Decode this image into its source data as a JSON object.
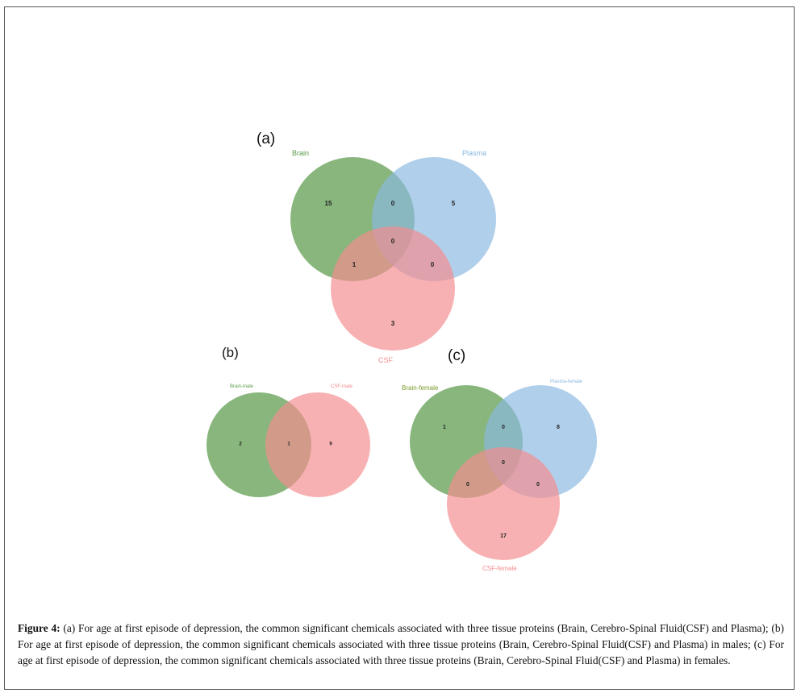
{
  "figure": {
    "caption_label": "Figure 4:",
    "caption_text": " (a) For age at first episode of depression, the common significant chemicals associated with three tissue proteins (Brain, Cerebro-Spinal Fluid(CSF) and Plasma); (b) For age at first episode of depression, the common significant chemicals associated with three tissue proteins (Brain, Cerebro-Spinal Fluid(CSF) and Plasma) in males; (c) For age at first episode of depression, the common significant chemicals associated with three tissue proteins (Brain, Cerebro-Spinal Fluid(CSF) and Plasma) in females."
  },
  "colors": {
    "green": "#5a9a4a",
    "blue": "#8ab8e2",
    "red": "#f48c8f"
  },
  "panels": {
    "a": {
      "label": "(a)",
      "sets": {
        "brain": "Brain",
        "plasma": "Plasma",
        "csf": "CSF"
      },
      "counts": {
        "brain_only": "15",
        "brain_plasma": "0",
        "plasma_only": "5",
        "all_three": "0",
        "brain_csf": "1",
        "plasma_csf": "0",
        "csf_only": "3"
      }
    },
    "b": {
      "label": "(b)",
      "sets": {
        "brain": "Brain-male",
        "csf": "CSF-male"
      },
      "counts": {
        "brain_only": "2",
        "brain_csf": "1",
        "csf_only": "9"
      }
    },
    "c": {
      "label": "(c)",
      "sets": {
        "brain": "Brain-female",
        "plasma": "Plasma-female",
        "csf": "CSF-female"
      },
      "counts": {
        "brain_only": "1",
        "brain_plasma": "0",
        "plasma_only": "8",
        "all_three": "0",
        "brain_csf": "0",
        "plasma_csf": "0",
        "csf_only": "17"
      }
    }
  }
}
